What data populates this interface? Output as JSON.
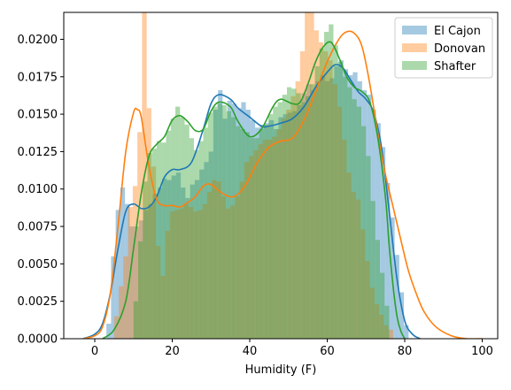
{
  "chart_data": {
    "type": "histogram-kde",
    "xlabel": "Humidity (F)",
    "ylabel": "",
    "xlim": [
      -8,
      104
    ],
    "ylim": [
      0,
      0.0218
    ],
    "xticks": [
      0,
      20,
      40,
      60,
      80,
      100
    ],
    "yticks": [
      0.0,
      0.0025,
      0.005,
      0.0075,
      0.01,
      0.0125,
      0.015,
      0.0175,
      0.02
    ],
    "ytick_labels": [
      "0.0000",
      "0.0025",
      "0.0050",
      "0.0075",
      "0.0100",
      "0.0125",
      "0.0150",
      "0.0175",
      "0.0200"
    ],
    "legend_position": "upper-right",
    "bin_width": 1.2,
    "series": [
      {
        "name": "El Cajon",
        "color": "#1f77b4",
        "bar_alpha": 0.4,
        "bins_start": 3,
        "bin_values": [
          0.001,
          0.0055,
          0.0086,
          0.0101,
          0.009,
          0.0075,
          0.0075,
          0.0079,
          0.0086,
          0.009,
          0.0097,
          0.0101,
          0.0107,
          0.0106,
          0.0109,
          0.0111,
          0.0101,
          0.0094,
          0.0103,
          0.0106,
          0.0113,
          0.0118,
          0.0125,
          0.0153,
          0.0166,
          0.0147,
          0.0159,
          0.0157,
          0.0154,
          0.0158,
          0.0153,
          0.0146,
          0.0141,
          0.0143,
          0.0144,
          0.0146,
          0.014,
          0.0148,
          0.015,
          0.0151,
          0.0152,
          0.0156,
          0.0164,
          0.017,
          0.0166,
          0.0172,
          0.0176,
          0.0172,
          0.0174,
          0.0182,
          0.0186,
          0.018,
          0.0176,
          0.0178,
          0.0172,
          0.0166,
          0.0163,
          0.0153,
          0.0144,
          0.0128,
          0.0104,
          0.0081,
          0.0056,
          0.0031,
          0.0009
        ],
        "kde_x": [
          -3,
          0,
          2,
          4,
          6,
          8,
          10,
          12,
          14,
          16,
          18,
          20,
          22,
          25,
          28,
          30,
          32,
          35,
          37,
          40,
          43,
          45,
          48,
          51,
          54,
          57,
          60,
          62,
          64,
          66,
          68,
          70,
          72,
          74,
          76,
          78,
          80,
          82,
          84
        ],
        "kde_y": [
          0.0,
          0.0003,
          0.001,
          0.003,
          0.006,
          0.0085,
          0.009,
          0.0087,
          0.0088,
          0.0095,
          0.0108,
          0.0113,
          0.0113,
          0.0118,
          0.014,
          0.0157,
          0.0163,
          0.016,
          0.0154,
          0.0148,
          0.0142,
          0.0142,
          0.0144,
          0.0147,
          0.0155,
          0.0168,
          0.0178,
          0.0183,
          0.0181,
          0.0173,
          0.0165,
          0.016,
          0.0151,
          0.0128,
          0.0085,
          0.004,
          0.0012,
          0.0003,
          0.0
        ]
      },
      {
        "name": "Donovan",
        "color": "#ff7f0e",
        "bar_alpha": 0.4,
        "bins_start": 5,
        "bin_values": [
          0.0015,
          0.0035,
          0.0055,
          0.0088,
          0.0102,
          0.0138,
          0.0228,
          0.0154,
          0.0115,
          0.0062,
          0.0042,
          0.0072,
          0.0085,
          0.0086,
          0.0087,
          0.009,
          0.0088,
          0.0085,
          0.0086,
          0.009,
          0.0098,
          0.0106,
          0.0105,
          0.0095,
          0.0087,
          0.0089,
          0.0095,
          0.0105,
          0.0118,
          0.0122,
          0.0126,
          0.013,
          0.0133,
          0.0133,
          0.0135,
          0.014,
          0.0147,
          0.0153,
          0.0162,
          0.0172,
          0.0192,
          0.0225,
          0.0224,
          0.0206,
          0.0198,
          0.0192,
          0.0186,
          0.017,
          0.0155,
          0.0133,
          0.0111,
          0.0098,
          0.0093,
          0.0073,
          0.0052,
          0.0034,
          0.0023,
          0.0016,
          0.0009,
          0.0006
        ],
        "kde_x": [
          -3,
          0,
          2,
          4,
          6,
          8,
          10,
          11,
          12,
          14,
          16,
          18,
          20,
          22,
          24,
          26,
          28,
          30,
          33,
          36,
          39,
          42,
          45,
          48,
          51,
          54,
          57,
          60,
          63,
          65,
          67,
          69,
          71,
          73,
          75,
          77,
          79,
          81,
          83,
          85,
          88,
          92,
          96,
          100
        ],
        "kde_y": [
          0.0,
          0.0002,
          0.0008,
          0.003,
          0.0075,
          0.0125,
          0.0151,
          0.0153,
          0.0148,
          0.0115,
          0.0093,
          0.0089,
          0.0089,
          0.0088,
          0.0091,
          0.0095,
          0.0102,
          0.0103,
          0.0097,
          0.0095,
          0.0103,
          0.0118,
          0.0128,
          0.0132,
          0.0134,
          0.0146,
          0.0165,
          0.0185,
          0.02,
          0.0205,
          0.0204,
          0.0195,
          0.017,
          0.0138,
          0.011,
          0.0088,
          0.0066,
          0.0045,
          0.003,
          0.0018,
          0.0008,
          0.0002,
          0.0,
          0.0
        ]
      },
      {
        "name": "Shafter",
        "color": "#2ca02c",
        "bar_alpha": 0.4,
        "bins_start": 10,
        "bin_values": [
          0.0025,
          0.0065,
          0.0105,
          0.0124,
          0.0127,
          0.0132,
          0.0131,
          0.0139,
          0.0147,
          0.0155,
          0.0148,
          0.0143,
          0.0134,
          0.0126,
          0.0132,
          0.0141,
          0.0151,
          0.0155,
          0.0157,
          0.0156,
          0.0152,
          0.0148,
          0.0142,
          0.014,
          0.0138,
          0.0134,
          0.0134,
          0.014,
          0.0143,
          0.015,
          0.0155,
          0.0158,
          0.0163,
          0.0168,
          0.0167,
          0.0164,
          0.0158,
          0.0162,
          0.017,
          0.0182,
          0.0194,
          0.0205,
          0.021,
          0.0196,
          0.0185,
          0.0175,
          0.0168,
          0.016,
          0.0155,
          0.0142,
          0.0122,
          0.0092,
          0.0066,
          0.0044,
          0.0022
        ],
        "kde_x": [
          2,
          5,
          8,
          10,
          12,
          14,
          16,
          18,
          20,
          22,
          24,
          26,
          28,
          30,
          32,
          35,
          37,
          40,
          43,
          46,
          48,
          51,
          53,
          55,
          57,
          59,
          61,
          63,
          65,
          67,
          69,
          71,
          73,
          75,
          76,
          77,
          78,
          79,
          80
        ],
        "kde_y": [
          0.0,
          0.0006,
          0.0025,
          0.006,
          0.0097,
          0.0122,
          0.013,
          0.0135,
          0.0146,
          0.0149,
          0.0145,
          0.0139,
          0.014,
          0.0152,
          0.0158,
          0.0155,
          0.0145,
          0.0135,
          0.014,
          0.0155,
          0.016,
          0.0157,
          0.0158,
          0.017,
          0.0185,
          0.0195,
          0.0198,
          0.0188,
          0.0175,
          0.0168,
          0.0165,
          0.0158,
          0.0135,
          0.0095,
          0.0062,
          0.0035,
          0.0015,
          0.0005,
          0.0
        ]
      }
    ]
  }
}
